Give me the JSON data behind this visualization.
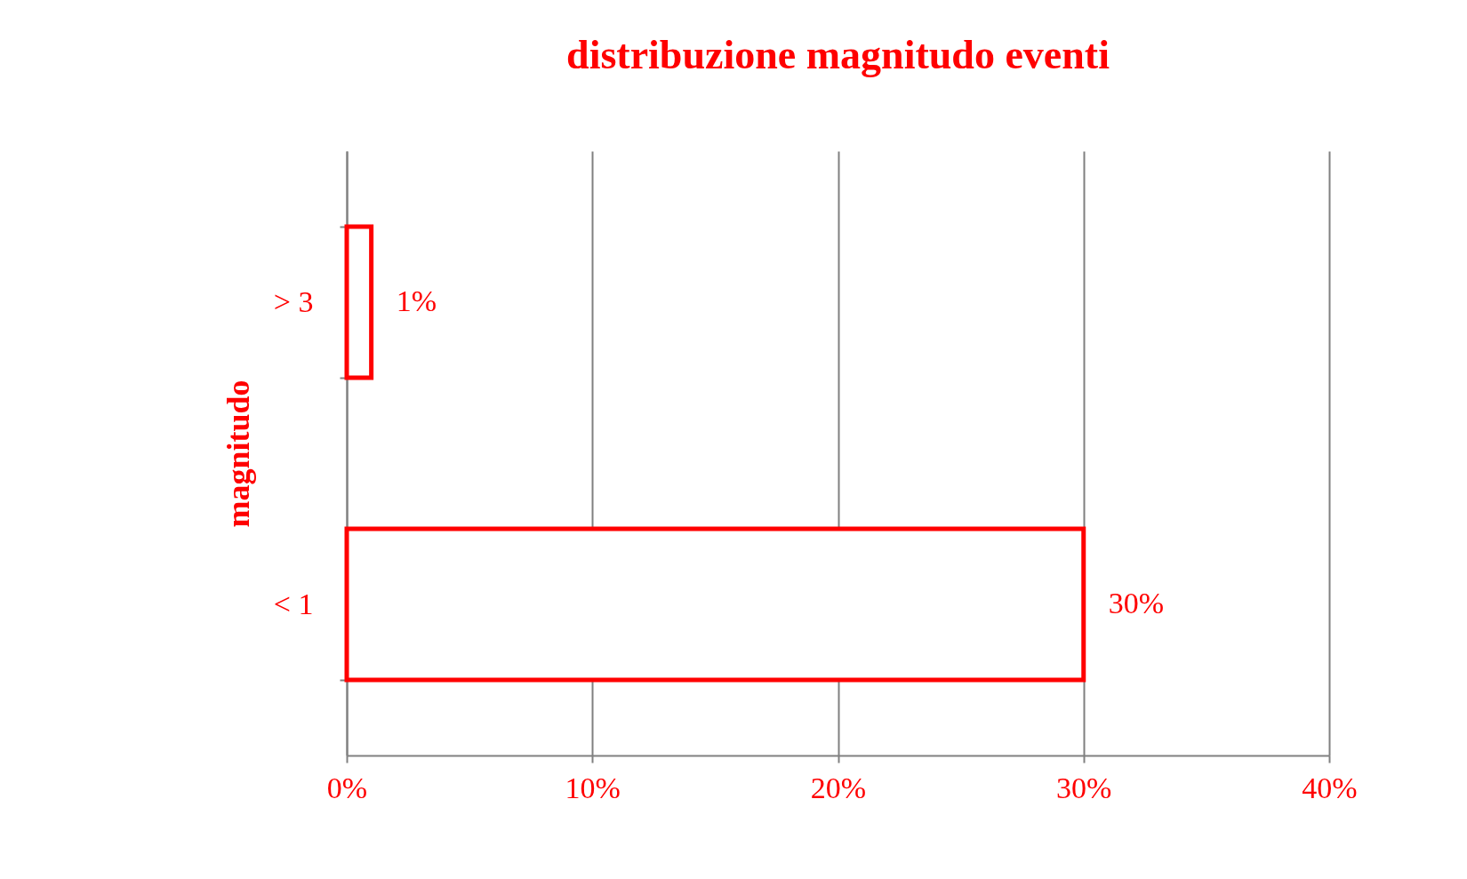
{
  "chart_data": {
    "type": "bar",
    "orientation": "horizontal",
    "title": "distribuzione magnitudo eventi",
    "ylabel": "magnitudo",
    "categories": [
      "> 3",
      "< 1"
    ],
    "series": [
      {
        "color": "#ff0000",
        "values": [
          1,
          30
        ],
        "value_labels": [
          "1%",
          "30%"
        ]
      }
    ],
    "xlim": [
      0,
      40
    ],
    "xticks": [
      {
        "value": 0,
        "label": "0%"
      },
      {
        "value": 10,
        "label": "10%"
      },
      {
        "value": 20,
        "label": "20%"
      },
      {
        "value": 30,
        "label": "30%"
      },
      {
        "value": 40,
        "label": "40%"
      }
    ],
    "grid": "x"
  }
}
